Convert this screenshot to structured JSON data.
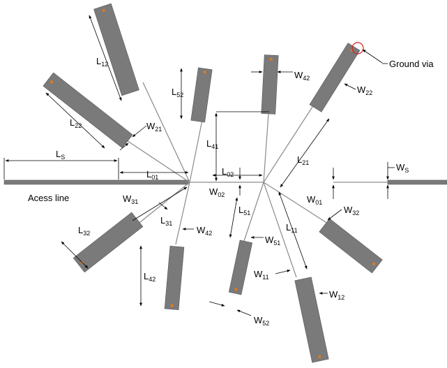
{
  "labels": {
    "ground_via": "Ground via",
    "access_line": "Acess line",
    "L_S": {
      "main": "L",
      "sub": "S"
    },
    "W_S": {
      "main": "W",
      "sub": "S"
    },
    "L_01": {
      "main": "L",
      "sub": "01"
    },
    "W_01": {
      "main": "W",
      "sub": "01"
    },
    "L_02": {
      "main": "L",
      "sub": "02"
    },
    "W_02": {
      "main": "W",
      "sub": "02"
    },
    "L_11": {
      "main": "L",
      "sub": "11"
    },
    "W_11": {
      "main": "W",
      "sub": "11"
    },
    "L_12": {
      "main": "L",
      "sub": "12"
    },
    "W_12": {
      "main": "W",
      "sub": "12"
    },
    "L_21": {
      "main": "L",
      "sub": "21"
    },
    "W_21": {
      "main": "W",
      "sub": "21"
    },
    "L_22": {
      "main": "L",
      "sub": "22"
    },
    "W_22": {
      "main": "W",
      "sub": "22"
    },
    "L_31": {
      "main": "L",
      "sub": "31"
    },
    "W_31": {
      "main": "W",
      "sub": "31"
    },
    "L_32": {
      "main": "L",
      "sub": "32"
    },
    "W_32": {
      "main": "W",
      "sub": "32"
    },
    "L_41": {
      "main": "L",
      "sub": "41"
    },
    "W_42a": {
      "main": "W",
      "sub": "42"
    },
    "W_42b": {
      "main": "W",
      "sub": "42"
    },
    "L_42": {
      "main": "L",
      "sub": "42"
    },
    "L_51": {
      "main": "L",
      "sub": "51"
    },
    "W_51": {
      "main": "W",
      "sub": "51"
    },
    "L_52": {
      "main": "L",
      "sub": "52"
    },
    "W_52": {
      "main": "W",
      "sub": "52"
    }
  },
  "colors": {
    "stub_fill": "#7a7a7a",
    "thin_line": "#8a8a8a",
    "via": "#e07b1a",
    "via_marker": "#d42020"
  }
}
